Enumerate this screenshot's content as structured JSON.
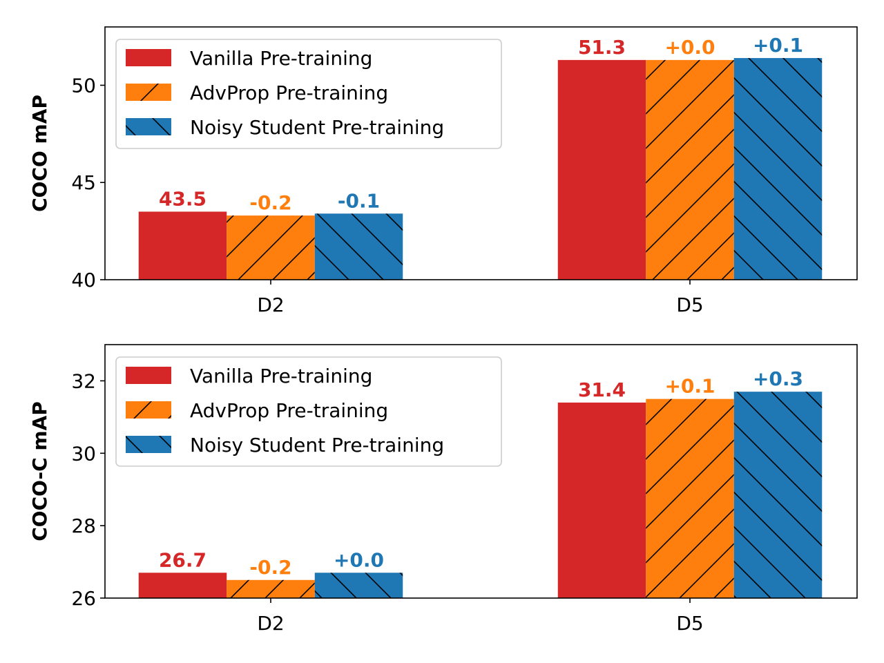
{
  "chart_data": [
    {
      "type": "bar",
      "categories": [
        "D2",
        "D5"
      ],
      "ylabel": "COCO mAP",
      "ylim": [
        40,
        53
      ],
      "yticks": [
        40,
        45,
        50
      ],
      "legend_position": "upper-left",
      "series": [
        {
          "name": "Vanilla Pre-training",
          "values": [
            43.5,
            51.3
          ],
          "labels": [
            "43.5",
            "51.3"
          ],
          "color": "#d62728",
          "hatch": "none"
        },
        {
          "name": "AdvProp Pre-training",
          "values": [
            43.3,
            51.3
          ],
          "labels": [
            "-0.2",
            "+0.0"
          ],
          "color": "#ff7f0e",
          "hatch": "forward"
        },
        {
          "name": "Noisy Student Pre-training",
          "values": [
            43.4,
            51.4
          ],
          "labels": [
            "-0.1",
            "+0.1"
          ],
          "color": "#1f77b4",
          "hatch": "backward"
        }
      ]
    },
    {
      "type": "bar",
      "categories": [
        "D2",
        "D5"
      ],
      "ylabel": "COCO-C mAP",
      "ylim": [
        26,
        33
      ],
      "yticks": [
        26,
        28,
        30,
        32
      ],
      "legend_position": "upper-left",
      "series": [
        {
          "name": "Vanilla Pre-training",
          "values": [
            26.7,
            31.4
          ],
          "labels": [
            "26.7",
            "31.4"
          ],
          "color": "#d62728",
          "hatch": "none"
        },
        {
          "name": "AdvProp Pre-training",
          "values": [
            26.5,
            31.5
          ],
          "labels": [
            "-0.2",
            "+0.1"
          ],
          "color": "#ff7f0e",
          "hatch": "forward"
        },
        {
          "name": "Noisy Student Pre-training",
          "values": [
            26.7,
            31.7
          ],
          "labels": [
            "+0.0",
            "+0.3"
          ],
          "color": "#1f77b4",
          "hatch": "backward"
        }
      ]
    }
  ]
}
